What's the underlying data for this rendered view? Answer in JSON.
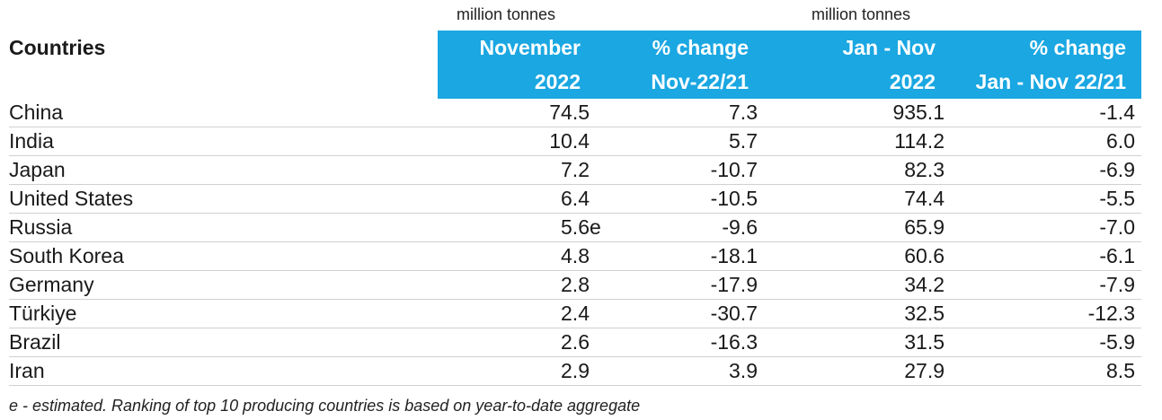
{
  "units": {
    "left": "million tonnes",
    "right": "million tonnes"
  },
  "header": {
    "countries": "Countries",
    "col1": [
      "November",
      "2022"
    ],
    "col2": [
      "% change",
      "Nov-22/21"
    ],
    "col3": [
      "Jan - Nov",
      "2022"
    ],
    "col4": [
      "% change",
      "Jan - Nov 22/21"
    ]
  },
  "rows": [
    {
      "country": "China",
      "nov": "74.5",
      "flag": "",
      "nov_change": "7.3",
      "ytd": "935.1",
      "ytd_change": "-1.4"
    },
    {
      "country": "India",
      "nov": "10.4",
      "flag": "",
      "nov_change": "5.7",
      "ytd": "114.2",
      "ytd_change": "6.0"
    },
    {
      "country": "Japan",
      "nov": "7.2",
      "flag": "",
      "nov_change": "-10.7",
      "ytd": "82.3",
      "ytd_change": "-6.9"
    },
    {
      "country": "United States",
      "nov": "6.4",
      "flag": "",
      "nov_change": "-10.5",
      "ytd": "74.4",
      "ytd_change": "-5.5"
    },
    {
      "country": "Russia",
      "nov": "5.6",
      "flag": "e",
      "nov_change": "-9.6",
      "ytd": "65.9",
      "ytd_change": "-7.0"
    },
    {
      "country": "South Korea",
      "nov": "4.8",
      "flag": "",
      "nov_change": "-18.1",
      "ytd": "60.6",
      "ytd_change": "-6.1"
    },
    {
      "country": "Germany",
      "nov": "2.8",
      "flag": "",
      "nov_change": "-17.9",
      "ytd": "34.2",
      "ytd_change": "-7.9"
    },
    {
      "country": "Türkiye",
      "nov": "2.4",
      "flag": "",
      "nov_change": "-30.7",
      "ytd": "32.5",
      "ytd_change": "-12.3"
    },
    {
      "country": "Brazil",
      "nov": "2.6",
      "flag": "",
      "nov_change": "-16.3",
      "ytd": "31.5",
      "ytd_change": "-5.9"
    },
    {
      "country": "Iran",
      "nov": "2.9",
      "flag": "",
      "nov_change": "3.9",
      "ytd": "27.9",
      "ytd_change": "8.5"
    }
  ],
  "footnote": "e - estimated. Ranking of top 10 producing countries is based on year-to-date aggregate",
  "colors": {
    "header_bg": "#1aa7e2",
    "header_text": "#ffffff",
    "row_border": "#d0d0d0"
  }
}
